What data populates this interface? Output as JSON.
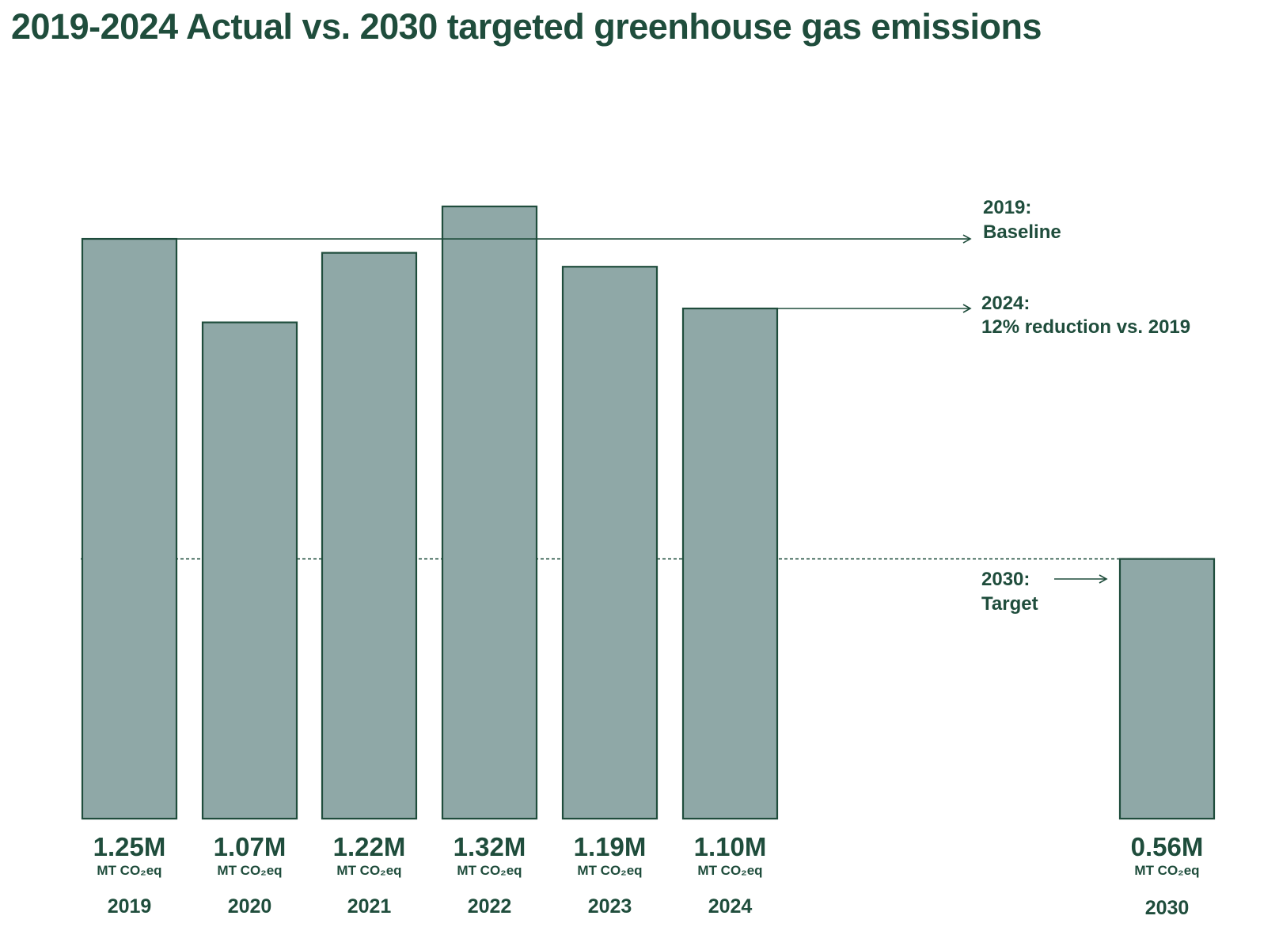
{
  "title": "2019-2024 Actual vs. 2030 targeted greenhouse gas emissions",
  "colors": {
    "bar_fill": "#8fa8a7",
    "ink": "#1f4d3c"
  },
  "chart_data": {
    "type": "bar",
    "title": "2019-2024 Actual vs. 2030 targeted greenhouse gas emissions",
    "xlabel": "",
    "ylabel": "",
    "categories": [
      "2019",
      "2020",
      "2021",
      "2022",
      "2023",
      "2024",
      "2030"
    ],
    "values": [
      1.25,
      1.07,
      1.22,
      1.32,
      1.19,
      1.1,
      0.56
    ],
    "value_labels": [
      "1.25M",
      "1.07M",
      "1.22M",
      "1.32M",
      "1.19M",
      "1.10M",
      "0.56M"
    ],
    "unit_label": "MT CO₂eq",
    "ylim": [
      0,
      1.32
    ],
    "grid": false,
    "annotations": {
      "baseline": {
        "line1": "2019:",
        "line2": "Baseline",
        "value": 1.25
      },
      "current": {
        "line1": "2024:",
        "line2": "12% reduction vs. 2019",
        "value": 1.1
      },
      "target": {
        "line1": "2030:",
        "line2": "Target",
        "value": 0.56
      }
    }
  }
}
